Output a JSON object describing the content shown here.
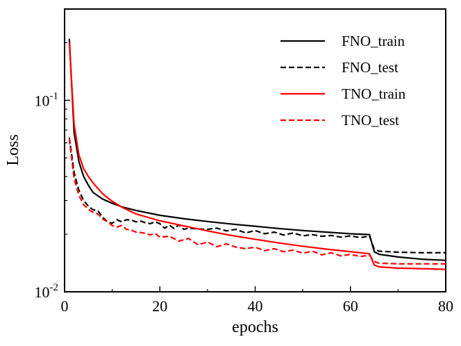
{
  "chart_data": {
    "type": "line",
    "title": "",
    "xlabel": "epochs",
    "ylabel": "Loss",
    "xlim": [
      0,
      80
    ],
    "ylim": [
      0.01,
      0.3
    ],
    "yscale": "log",
    "x_ticks": [
      0,
      20,
      40,
      60,
      80
    ],
    "x_tick_labels": [
      "0",
      "20",
      "40",
      "60",
      "80"
    ],
    "y_ticks": [
      {
        "value": 0.1,
        "base": "10",
        "exp": "-1"
      },
      {
        "value": 0.01,
        "base": "10",
        "exp": "-2"
      }
    ],
    "grid": false,
    "legend_position": "top-right",
    "series": [
      {
        "name": "FNO_train",
        "color": "#000000",
        "dash": "solid",
        "x": [
          1,
          2,
          3,
          4,
          5,
          6,
          8,
          10,
          12,
          15,
          20,
          25,
          30,
          35,
          40,
          45,
          50,
          55,
          60,
          64,
          65,
          66,
          70,
          75,
          80
        ],
        "values": [
          0.21,
          0.068,
          0.048,
          0.04,
          0.036,
          0.033,
          0.0305,
          0.029,
          0.0278,
          0.0266,
          0.0251,
          0.0241,
          0.0233,
          0.0226,
          0.022,
          0.0214,
          0.0209,
          0.0205,
          0.0201,
          0.0199,
          0.0162,
          0.0157,
          0.0152,
          0.0148,
          0.0146
        ]
      },
      {
        "name": "FNO_test",
        "color": "#000000",
        "dash": "dashed",
        "x": [
          1,
          2,
          3,
          4,
          5,
          6,
          7,
          8,
          9,
          10,
          11,
          12,
          13,
          14,
          15,
          16,
          17,
          18,
          19,
          20,
          21,
          22,
          23,
          24,
          25,
          26,
          28,
          30,
          32,
          34,
          36,
          38,
          40,
          42,
          44,
          46,
          48,
          50,
          52,
          54,
          56,
          58,
          60,
          62,
          64,
          65,
          66,
          70,
          75,
          80
        ],
        "values": [
          0.064,
          0.042,
          0.034,
          0.03,
          0.028,
          0.0268,
          0.0265,
          0.0245,
          0.0232,
          0.0228,
          0.0238,
          0.0232,
          0.0238,
          0.0237,
          0.0232,
          0.0234,
          0.0229,
          0.0227,
          0.0232,
          0.0227,
          0.0215,
          0.0223,
          0.0214,
          0.0224,
          0.0212,
          0.0215,
          0.0213,
          0.0212,
          0.0215,
          0.0208,
          0.0212,
          0.0203,
          0.0209,
          0.0201,
          0.0205,
          0.0198,
          0.0203,
          0.0196,
          0.0199,
          0.0195,
          0.0197,
          0.0193,
          0.0196,
          0.0192,
          0.0195,
          0.0167,
          0.0163,
          0.0161,
          0.016,
          0.016
        ]
      },
      {
        "name": "TNO_train",
        "color": "#ff0000",
        "dash": "solid",
        "x": [
          1,
          2,
          3,
          4,
          5,
          6,
          8,
          10,
          12,
          15,
          20,
          25,
          30,
          35,
          40,
          45,
          50,
          55,
          60,
          64,
          65,
          66,
          70,
          75,
          80
        ],
        "values": [
          0.2,
          0.075,
          0.052,
          0.044,
          0.04,
          0.037,
          0.0325,
          0.0297,
          0.0277,
          0.0255,
          0.0235,
          0.0221,
          0.0208,
          0.0197,
          0.0188,
          0.018,
          0.0173,
          0.0167,
          0.0162,
          0.0158,
          0.0138,
          0.0135,
          0.0133,
          0.0132,
          0.0131
        ]
      },
      {
        "name": "TNO_test",
        "color": "#ff0000",
        "dash": "dashed",
        "x": [
          1,
          2,
          3,
          4,
          5,
          6,
          7,
          8,
          9,
          10,
          11,
          12,
          13,
          14,
          15,
          16,
          17,
          18,
          19,
          20,
          22,
          24,
          26,
          28,
          30,
          32,
          34,
          36,
          38,
          40,
          42,
          44,
          46,
          48,
          50,
          52,
          54,
          56,
          58,
          60,
          62,
          64,
          65,
          66,
          70,
          75,
          80
        ],
        "values": [
          0.063,
          0.039,
          0.032,
          0.0285,
          0.027,
          0.026,
          0.0255,
          0.024,
          0.0232,
          0.0222,
          0.0218,
          0.0222,
          0.0212,
          0.021,
          0.0205,
          0.0204,
          0.0202,
          0.0198,
          0.0202,
          0.0193,
          0.0195,
          0.0184,
          0.019,
          0.0176,
          0.0182,
          0.0172,
          0.0178,
          0.0171,
          0.0168,
          0.0171,
          0.0164,
          0.0168,
          0.0162,
          0.0165,
          0.0159,
          0.0163,
          0.0156,
          0.016,
          0.0154,
          0.0157,
          0.0153,
          0.0155,
          0.0144,
          0.0141,
          0.014,
          0.014,
          0.014
        ]
      }
    ]
  }
}
